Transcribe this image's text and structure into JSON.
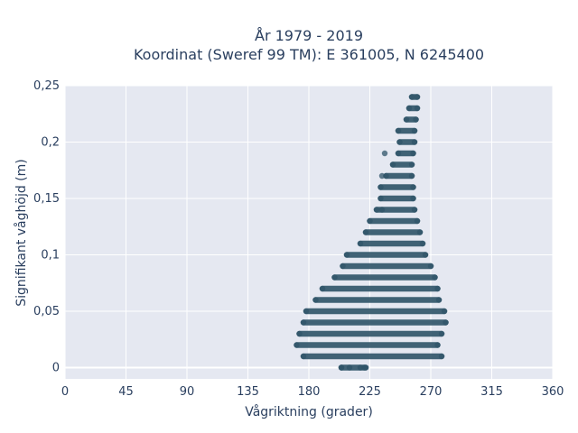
{
  "chart_data": {
    "type": "scatter",
    "title_line1": "År 1979 - 2019",
    "title_line2": "Koordinat (Sweref 99 TM): E 361005, N 6245400",
    "xlabel": "Vågriktning (grader)",
    "ylabel": "Signifikant våghöjd (m)",
    "xlim": [
      0,
      360
    ],
    "ylim": [
      -0.01,
      0.25
    ],
    "x_ticks": [
      0,
      45,
      90,
      135,
      180,
      225,
      270,
      315,
      360
    ],
    "x_tick_labels": [
      "0",
      "45",
      "90",
      "135",
      "180",
      "225",
      "270",
      "315",
      "360"
    ],
    "y_ticks": [
      0,
      0.05,
      0.1,
      0.15,
      0.2,
      0.25
    ],
    "y_tick_labels": [
      "0",
      "0,05",
      "0,1",
      "0,15",
      "0,2",
      "0,25"
    ],
    "grid": true,
    "marker_color": "#2f5468",
    "plot_background": "#e5e8f1",
    "bands": [
      {
        "y": 0.0,
        "xmin": 204,
        "xmax": 222
      },
      {
        "y": 0.01,
        "xmin": 176,
        "xmax": 278
      },
      {
        "y": 0.02,
        "xmin": 171,
        "xmax": 275
      },
      {
        "y": 0.03,
        "xmin": 173,
        "xmax": 278
      },
      {
        "y": 0.04,
        "xmin": 176,
        "xmax": 281
      },
      {
        "y": 0.05,
        "xmin": 178,
        "xmax": 280
      },
      {
        "y": 0.06,
        "xmin": 185,
        "xmax": 276
      },
      {
        "y": 0.07,
        "xmin": 190,
        "xmax": 275
      },
      {
        "y": 0.08,
        "xmin": 199,
        "xmax": 273
      },
      {
        "y": 0.09,
        "xmin": 205,
        "xmax": 270
      },
      {
        "y": 0.1,
        "xmin": 208,
        "xmax": 266
      },
      {
        "y": 0.11,
        "xmin": 218,
        "xmax": 264
      },
      {
        "y": 0.12,
        "xmin": 222,
        "xmax": 262
      },
      {
        "y": 0.13,
        "xmin": 225,
        "xmax": 260
      },
      {
        "y": 0.14,
        "xmin": 230,
        "xmax": 258
      },
      {
        "y": 0.15,
        "xmin": 233,
        "xmax": 257
      },
      {
        "y": 0.16,
        "xmin": 233,
        "xmax": 257
      },
      {
        "y": 0.17,
        "xmin": 237,
        "xmax": 256
      },
      {
        "y": 0.18,
        "xmin": 242,
        "xmax": 256
      },
      {
        "y": 0.19,
        "xmin": 246,
        "xmax": 257
      },
      {
        "y": 0.2,
        "xmin": 247,
        "xmax": 258
      },
      {
        "y": 0.21,
        "xmin": 246,
        "xmax": 258
      },
      {
        "y": 0.22,
        "xmin": 252,
        "xmax": 259
      },
      {
        "y": 0.23,
        "xmin": 254,
        "xmax": 260
      },
      {
        "y": 0.24,
        "xmin": 256,
        "xmax": 260
      }
    ],
    "isolated_points": [
      {
        "x": 204,
        "y": 0.0
      },
      {
        "x": 210,
        "y": 0.0
      },
      {
        "x": 218,
        "y": 0.0
      },
      {
        "x": 221,
        "y": 0.0
      },
      {
        "x": 234,
        "y": 0.17
      },
      {
        "x": 234,
        "y": 0.14
      },
      {
        "x": 236,
        "y": 0.19
      }
    ]
  }
}
